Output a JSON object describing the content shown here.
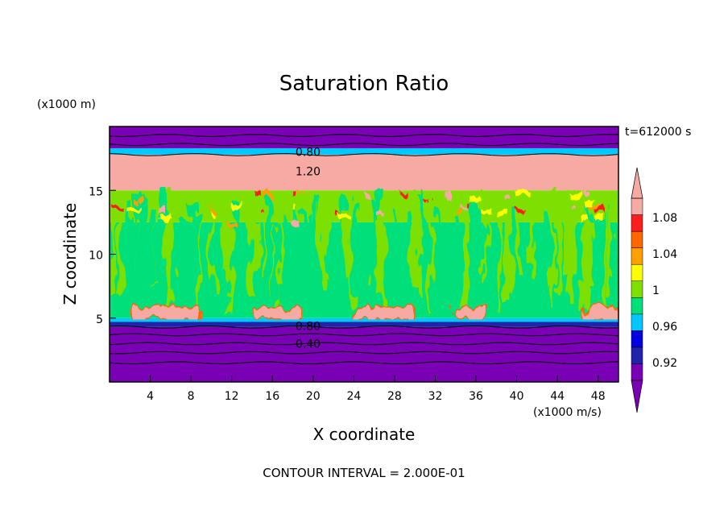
{
  "chart_data": {
    "type": "heatmap",
    "title": "Saturation Ratio",
    "xlabel": "X coordinate",
    "ylabel": "Z coordinate",
    "x_unit": "(x1000 m/s)",
    "y_unit": "(x1000 m)",
    "time_label": "t=612000 s",
    "footer": "CONTOUR INTERVAL = 2.000E-01",
    "xlim": [
      0,
      50
    ],
    "ylim": [
      0,
      20
    ],
    "x_ticks": [
      4,
      8,
      12,
      16,
      20,
      24,
      28,
      32,
      36,
      40,
      44,
      48
    ],
    "y_ticks": [
      5,
      10,
      15
    ],
    "contour_labels": [
      {
        "text": "0.80",
        "x": 17.0,
        "z": 18.0
      },
      {
        "text": "1.20",
        "x": 17.0,
        "z": 16.5
      },
      {
        "text": "0.80",
        "x": 17.0,
        "z": 4.4
      },
      {
        "text": "0.40",
        "x": 17.0,
        "z": 3.0
      }
    ],
    "colorbar": {
      "tick_labels": [
        "0.92",
        "0.96",
        "1",
        "1.04",
        "1.08"
      ],
      "colors": [
        "#7a00b5",
        "#2222aa",
        "#0000e0",
        "#00c8ff",
        "#00e07a",
        "#7ee000",
        "#ffff00",
        "#ffa000",
        "#ff6600",
        "#ff1e1e",
        "#f7a9a4"
      ],
      "under_color": "#7a00b5",
      "over_color": "#f7a9a4"
    },
    "layers": [
      {
        "z": [
          0,
          4.3
        ],
        "value": 0.6,
        "color": "#7a00b5"
      },
      {
        "z": [
          4.3,
          4.7
        ],
        "value": 0.93,
        "color": "#2222aa"
      },
      {
        "z": [
          4.7,
          5.0
        ],
        "value": 0.97,
        "color": "#00c8ff"
      },
      {
        "z": [
          5.0,
          12.5
        ],
        "value": 0.99,
        "color": "#00e07a"
      },
      {
        "z": [
          12.5,
          15.0
        ],
        "value": 1.02,
        "color": "#7ee000"
      },
      {
        "z": [
          15.0,
          17.8
        ],
        "value": 1.2,
        "color": "#f7a9a4"
      },
      {
        "z": [
          17.8,
          18.3
        ],
        "value": 0.95,
        "color": "#00c8ff"
      },
      {
        "z": [
          18.3,
          20
        ],
        "value": 0.6,
        "color": "#7a00b5"
      }
    ]
  }
}
